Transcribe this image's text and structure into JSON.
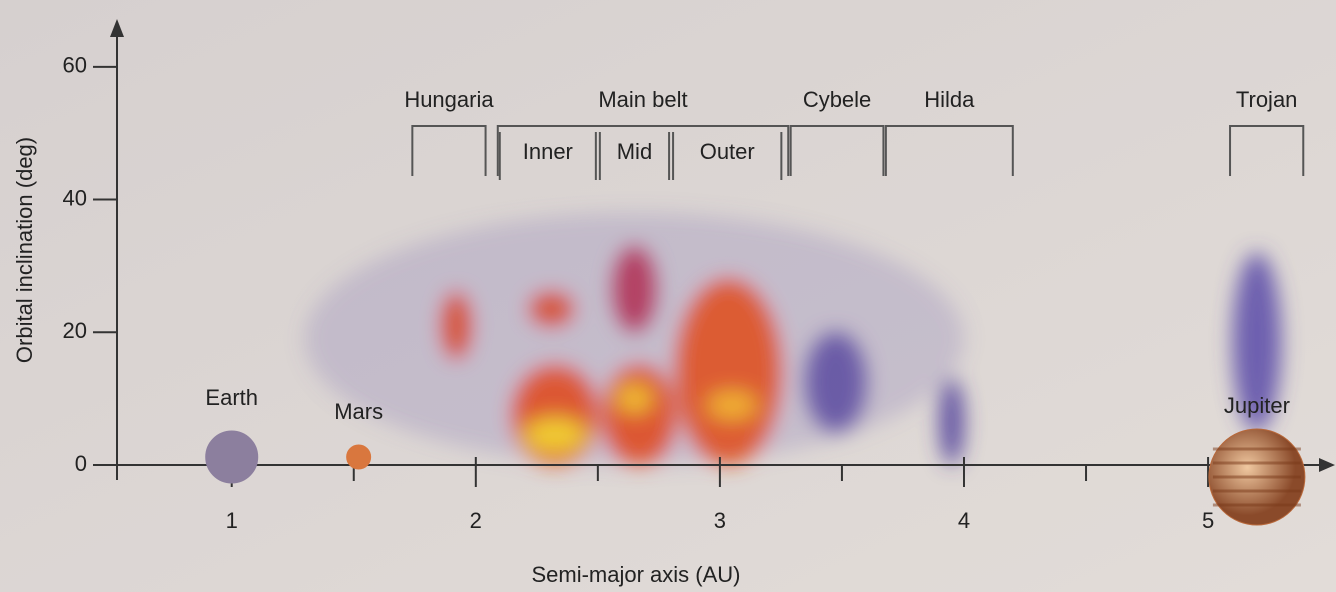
{
  "chart_data": {
    "type": "scatter",
    "x_label": "Semi-major axis (AU)",
    "y_label": "Orbital inclination (deg)",
    "xlim": [
      0.53,
      5.52
    ],
    "ylim": [
      0,
      66
    ],
    "xticks": [
      1,
      2,
      3,
      4,
      5
    ],
    "minor_xticks": [
      1.5,
      2.5,
      3.5,
      4.5
    ],
    "yticks": [
      0,
      20,
      40,
      60
    ],
    "bodies": [
      {
        "name": "Earth",
        "a": 1,
        "inclination": 0,
        "color": "#8c7f9e"
      },
      {
        "name": "Mars",
        "a": 1.52,
        "inclination": 0,
        "color": "#d9773e"
      },
      {
        "name": "Jupiter",
        "a": 5.2,
        "inclination": 0,
        "color": "#b8683a"
      }
    ],
    "groups": [
      {
        "label": "Hungaria",
        "a": [
          1.74,
          2.04
        ]
      },
      {
        "label": "Main belt",
        "a": [
          2.09,
          3.28
        ],
        "subgroups": [
          {
            "label": "Inner",
            "a": [
              2.09,
              2.5
            ]
          },
          {
            "label": "Mid",
            "a": [
              2.5,
              2.8
            ]
          },
          {
            "label": "Outer",
            "a": [
              2.8,
              3.26
            ]
          }
        ]
      },
      {
        "label": "Cybele",
        "a": [
          3.29,
          3.67
        ]
      },
      {
        "label": "Hilda",
        "a": [
          3.68,
          4.2
        ]
      },
      {
        "label": "Trojan",
        "a": [
          5.09,
          5.39
        ]
      }
    ],
    "density": [
      {
        "a": [
          1.3,
          4.0
        ],
        "i": [
          0,
          38
        ],
        "color": "#7a6fb0"
      },
      {
        "a": [
          1.86,
          1.98
        ],
        "i": [
          16,
          26
        ],
        "color": "#d8401a"
      },
      {
        "a": [
          2.15,
          2.5
        ],
        "i": [
          0,
          15
        ],
        "color": "#e0441a"
      },
      {
        "a": [
          2.2,
          2.45
        ],
        "i": [
          2,
          7
        ],
        "color": "#f4e030"
      },
      {
        "a": [
          2.22,
          2.4
        ],
        "i": [
          21,
          26
        ],
        "color": "#d8401a"
      },
      {
        "a": [
          2.52,
          2.82
        ],
        "i": [
          0,
          15
        ],
        "color": "#e0441a"
      },
      {
        "a": [
          2.58,
          2.72
        ],
        "i": [
          8,
          12
        ],
        "color": "#f4d030"
      },
      {
        "a": [
          2.56,
          2.74
        ],
        "i": [
          20,
          33
        ],
        "color": "#b02a50"
      },
      {
        "a": [
          2.82,
          3.25
        ],
        "i": [
          0,
          28
        ],
        "color": "#e04a1a"
      },
      {
        "a": [
          2.95,
          3.15
        ],
        "i": [
          7,
          11
        ],
        "color": "#f4c030"
      },
      {
        "a": [
          3.35,
          3.6
        ],
        "i": [
          5,
          20
        ],
        "color": "#5a4aa0"
      },
      {
        "a": [
          3.9,
          4.0
        ],
        "i": [
          0,
          13
        ],
        "color": "#4a3a98"
      },
      {
        "a": [
          5.1,
          5.3
        ],
        "i": [
          5,
          32
        ],
        "color": "#5a4aa8"
      }
    ]
  }
}
